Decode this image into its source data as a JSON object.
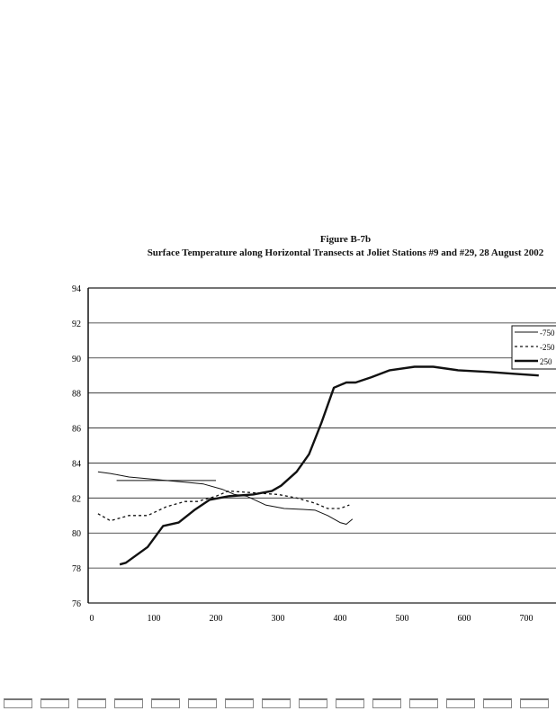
{
  "chart_data": {
    "type": "line",
    "title": "Figure B-7b",
    "subtitle": "Surface Temperature along Horizontal Transects at Joliet Stations #9 and #29, 28 August 2002",
    "xlabel": "",
    "ylabel": "",
    "xlim": [
      0,
      760
    ],
    "ylim": [
      76,
      94
    ],
    "xticks": [
      "0",
      "100",
      "200",
      "300",
      "400",
      "500",
      "600",
      "700"
    ],
    "yticks": [
      "76",
      "78",
      "80",
      "82",
      "84",
      "86",
      "88",
      "90",
      "92",
      "94"
    ],
    "grid": "horizontal",
    "legend_position": "right",
    "series": [
      {
        "name": "-750",
        "style": "thin-solid",
        "points": [
          [
            10,
            83.5
          ],
          [
            30,
            83.4
          ],
          [
            60,
            83.2
          ],
          [
            90,
            83.1
          ],
          [
            120,
            83.0
          ],
          [
            150,
            82.9
          ],
          [
            180,
            82.8
          ],
          [
            210,
            82.5
          ],
          [
            230,
            82.2
          ],
          [
            250,
            82.1
          ],
          [
            280,
            81.6
          ],
          [
            310,
            81.4
          ],
          [
            340,
            81.35
          ],
          [
            360,
            81.3
          ],
          [
            380,
            81.0
          ],
          [
            400,
            80.6
          ],
          [
            410,
            80.5
          ],
          [
            420,
            80.8
          ]
        ]
      },
      {
        "name": "-250",
        "style": "dotted",
        "points": [
          [
            10,
            81.1
          ],
          [
            30,
            80.7
          ],
          [
            60,
            81.0
          ],
          [
            90,
            81.0
          ],
          [
            120,
            81.5
          ],
          [
            150,
            81.8
          ],
          [
            170,
            81.8
          ],
          [
            200,
            82.1
          ],
          [
            220,
            82.4
          ],
          [
            260,
            82.3
          ],
          [
            300,
            82.2
          ],
          [
            330,
            82.0
          ],
          [
            360,
            81.7
          ],
          [
            380,
            81.4
          ],
          [
            400,
            81.4
          ],
          [
            415,
            81.6
          ]
        ]
      },
      {
        "name": "250",
        "style": "thick-solid",
        "points": [
          [
            45,
            78.2
          ],
          [
            55,
            78.3
          ],
          [
            90,
            79.2
          ],
          [
            115,
            80.4
          ],
          [
            140,
            80.6
          ],
          [
            165,
            81.3
          ],
          [
            190,
            81.9
          ],
          [
            220,
            82.1
          ],
          [
            260,
            82.2
          ],
          [
            290,
            82.4
          ],
          [
            305,
            82.7
          ],
          [
            330,
            83.5
          ],
          [
            350,
            84.5
          ],
          [
            370,
            86.3
          ],
          [
            390,
            88.3
          ],
          [
            410,
            88.6
          ],
          [
            425,
            88.6
          ],
          [
            450,
            88.9
          ],
          [
            480,
            89.3
          ],
          [
            520,
            89.5
          ],
          [
            550,
            89.5
          ],
          [
            590,
            89.3
          ],
          [
            640,
            89.2
          ],
          [
            680,
            89.1
          ],
          [
            720,
            89.0
          ]
        ]
      }
    ],
    "extra_segment": [
      [
        40,
        83.0
      ],
      [
        200,
        83.0
      ]
    ]
  }
}
